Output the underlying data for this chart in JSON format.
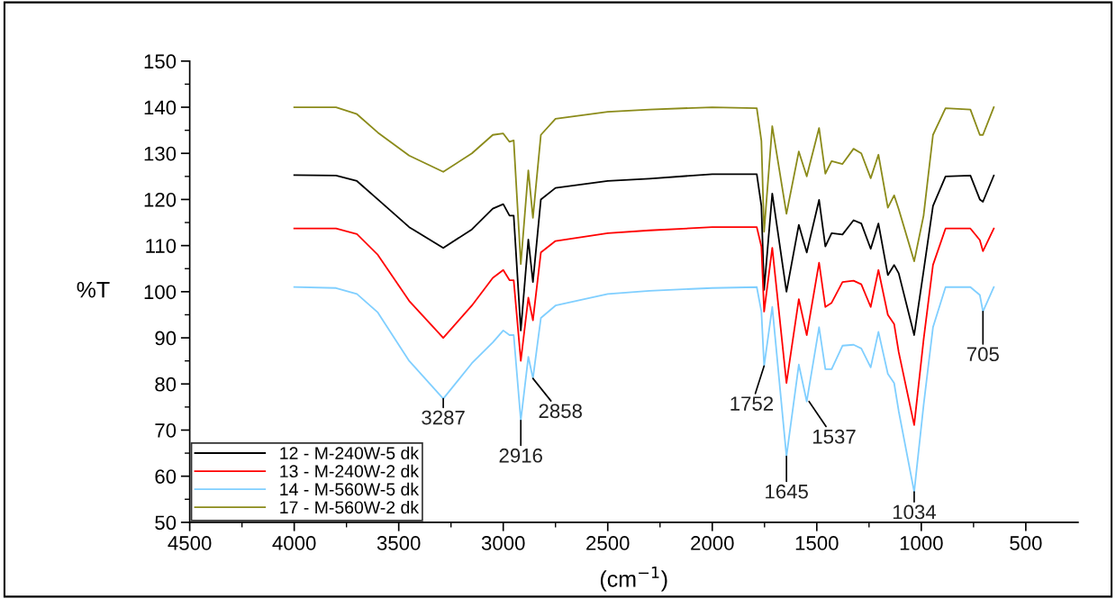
{
  "chart_data": {
    "type": "line",
    "xlabel": "(cm$^{−1}$)",
    "ylabel": "%T",
    "x": [
      4000,
      3800,
      3700,
      3600,
      3450,
      3287,
      3150,
      3050,
      3000,
      2970,
      2950,
      2916,
      2880,
      2858,
      2820,
      2750,
      2500,
      2300,
      2000,
      1787,
      1765,
      1752,
      1713,
      1645,
      1586,
      1548,
      1489,
      1459,
      1429,
      1377,
      1324,
      1287,
      1242,
      1205,
      1160,
      1130,
      1108,
      1034,
      989,
      944,
      884,
      765,
      720,
      705,
      653
    ],
    "series": [
      {
        "name": "12 - M-240W-5 dk",
        "color": "#000000",
        "values": [
          125.3,
          125.2,
          124,
          120,
          114,
          109.5,
          113.5,
          118,
          119,
          116.5,
          116.5,
          91.6,
          111.3,
          102.1,
          120,
          122.5,
          124,
          124.5,
          125.5,
          125.5,
          118.6,
          100.4,
          121.3,
          100,
          114.5,
          108.5,
          119.9,
          109.8,
          112.7,
          112.4,
          115.5,
          114.8,
          109.3,
          114.8,
          103.6,
          105.8,
          104,
          90.6,
          104.5,
          118.6,
          125,
          125.2,
          120,
          119.5,
          125.2
        ]
      },
      {
        "name": "13 - M-240W-2 dk",
        "color": "#ff0000",
        "values": [
          113.7,
          113.7,
          112.5,
          108,
          98,
          90,
          97,
          103,
          104.7,
          102.5,
          102.5,
          85,
          98.7,
          93.8,
          108.5,
          111,
          112.7,
          113.3,
          114,
          114,
          109.8,
          95.7,
          109.5,
          80.2,
          98.4,
          90.6,
          106.3,
          96.7,
          97.6,
          102.1,
          102.4,
          101.6,
          96.7,
          104.7,
          95,
          93,
          86.9,
          71.1,
          89.6,
          105.8,
          113.7,
          113.7,
          111.2,
          108.8,
          113.7
        ]
      },
      {
        "name": "14 - M-560W-5 dk",
        "color": "#80cfff",
        "values": [
          101,
          100.8,
          99.5,
          95.5,
          85,
          76.8,
          84.5,
          89,
          91.6,
          90.6,
          90.6,
          72.1,
          85.9,
          81.2,
          94.3,
          97,
          99.5,
          100.2,
          100.8,
          101,
          95.7,
          83.9,
          96.7,
          64.3,
          84.2,
          76.2,
          92.3,
          83.2,
          83.2,
          88.3,
          88.5,
          87.7,
          83.6,
          91.3,
          82.2,
          80.2,
          74.1,
          56.6,
          75.4,
          92.3,
          101,
          101,
          99.3,
          95.7,
          101
        ]
      },
      {
        "name": "17 - M-560W-2 dk",
        "color": "#8b8b1a",
        "values": [
          140,
          140,
          138.5,
          134.5,
          129.5,
          126,
          130,
          134,
          134.3,
          132.5,
          132.8,
          106,
          126.3,
          116,
          134,
          137.5,
          139,
          139.5,
          140,
          139.8,
          132.7,
          113,
          135.9,
          116.9,
          130.4,
          125,
          135.5,
          125.6,
          128.3,
          127.7,
          131,
          130,
          124.6,
          129.7,
          118.2,
          120.9,
          117.9,
          106.6,
          116.5,
          134,
          139.8,
          139.5,
          134,
          134,
          140
        ]
      }
    ],
    "xlim": [
      4500,
      250
    ],
    "xticks": [
      4500,
      4000,
      3500,
      3000,
      2500,
      2000,
      1500,
      1000,
      500
    ],
    "ylim": [
      50,
      150
    ],
    "yticks": [
      50,
      60,
      70,
      80,
      90,
      100,
      110,
      120,
      130,
      140,
      150
    ],
    "grid": false,
    "legend": "bottom left",
    "annotations": [
      {
        "text": "3287",
        "x": 3287,
        "y": 76.8
      },
      {
        "text": "2916",
        "x": 2916,
        "y": 72.1
      },
      {
        "text": "2858",
        "x": 2858,
        "y": 81.2
      },
      {
        "text": "1752",
        "x": 1752,
        "y": 83.9
      },
      {
        "text": "1645",
        "x": 1645,
        "y": 64.3
      },
      {
        "text": "1537",
        "x": 1537,
        "y": 76.2
      },
      {
        "text": "1034",
        "x": 1034,
        "y": 56.6
      },
      {
        "text": "705",
        "x": 705,
        "y": 95.7
      }
    ]
  }
}
